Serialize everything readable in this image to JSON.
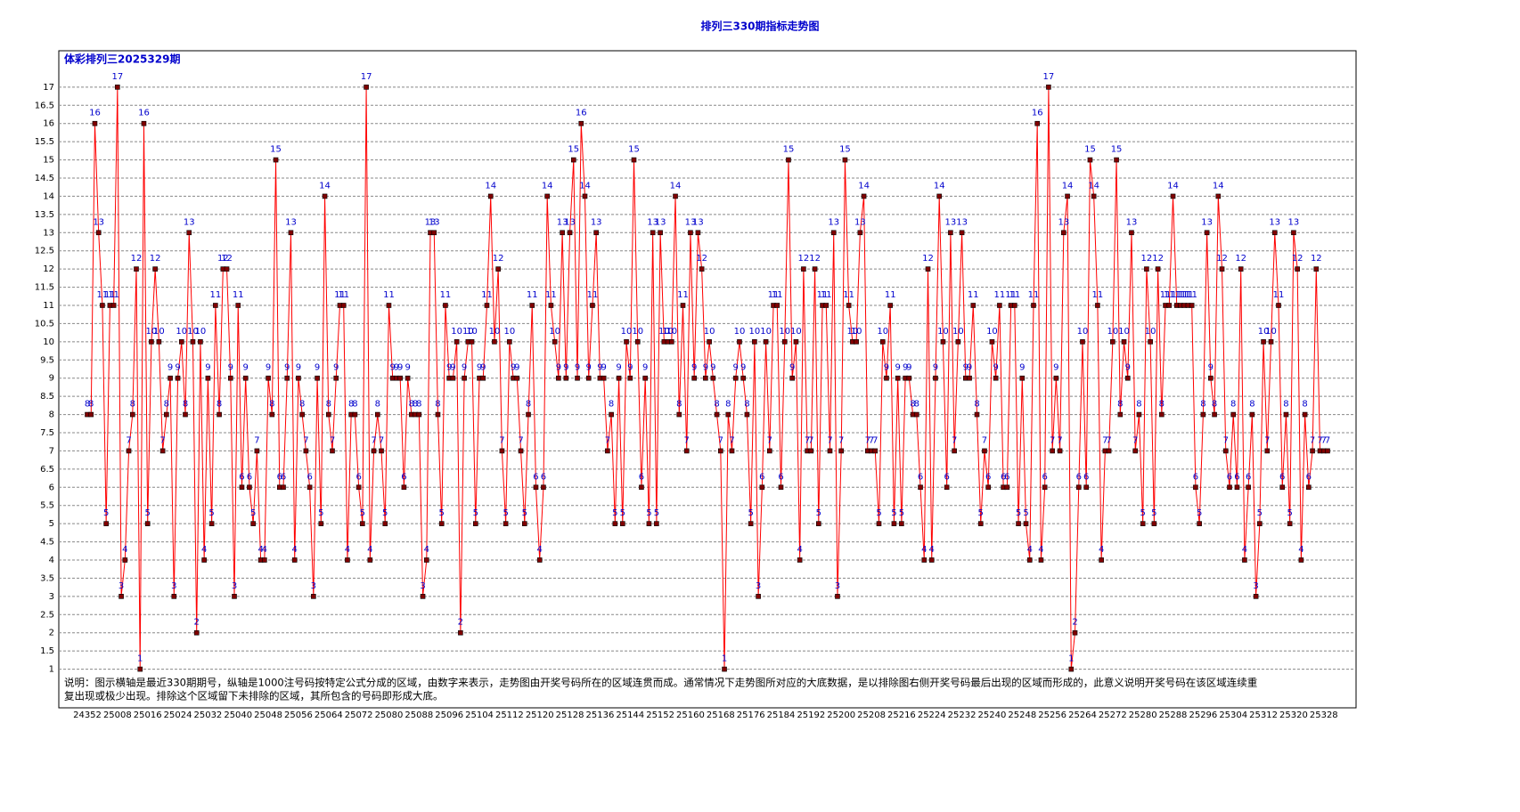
{
  "chart_data": {
    "type": "line",
    "title": "排列三330期指标走势图",
    "subtitle": "体彩排列三2025329期",
    "notes": [
      "说明：图示横轴是最近330期期号，纵轴是1000注号码按特定公式分成的区域，由数字来表示，走势图由开奖号码所在的区域连贯而成。通常情况下走势图所对应的大底数据，是以排除图右侧开奖号码最后出现的区域而形成的，此意义说明开奖号码在该区域连续重",
      "复出现或极少出现。排除这个区域留下未排除的区域，其所包含的号码即形成大底。"
    ],
    "categories": [
      "24352",
      null,
      null,
      null,
      null,
      null,
      null,
      null,
      "25008",
      null,
      null,
      null,
      null,
      null,
      null,
      null,
      "25016",
      null,
      null,
      null,
      null,
      null,
      null,
      null,
      "25024",
      null,
      null,
      null,
      null,
      null,
      null,
      null,
      "25032",
      null,
      null,
      null,
      null,
      null,
      null,
      null,
      "25040",
      null,
      null,
      null,
      null,
      null,
      null,
      null,
      "25048",
      null,
      null,
      null,
      null,
      null,
      null,
      null,
      "25056",
      null,
      null,
      null,
      null,
      null,
      null,
      null,
      "25064",
      null,
      null,
      null,
      null,
      null,
      null,
      null,
      "25072",
      null,
      null,
      null,
      null,
      null,
      null,
      null,
      "25080",
      null,
      null,
      null,
      null,
      null,
      null,
      null,
      "25088",
      null,
      null,
      null,
      null,
      null,
      null,
      null,
      "25096",
      null,
      null,
      null,
      null,
      null,
      null,
      null,
      "25104",
      null,
      null,
      null,
      null,
      null,
      null,
      null,
      "25112",
      null,
      null,
      null,
      null,
      null,
      null,
      null,
      "25120",
      null,
      null,
      null,
      null,
      null,
      null,
      null,
      "25128",
      null,
      null,
      null,
      null,
      null,
      null,
      null,
      "25136",
      null,
      null,
      null,
      null,
      null,
      null,
      null,
      "25144",
      null,
      null,
      null,
      null,
      null,
      null,
      null,
      "25152",
      null,
      null,
      null,
      null,
      null,
      null,
      null,
      "25160",
      null,
      null,
      null,
      null,
      null,
      null,
      null,
      "25168",
      null,
      null,
      null,
      null,
      null,
      null,
      null,
      "25176",
      null,
      null,
      null,
      null,
      null,
      null,
      null,
      "25184",
      null,
      null,
      null,
      null,
      null,
      null,
      null,
      "25192",
      null,
      null,
      null,
      null,
      null,
      null,
      null,
      "25200",
      null,
      null,
      null,
      null,
      null,
      null,
      null,
      "25208",
      null,
      null,
      null,
      null,
      null,
      null,
      null,
      "25216",
      null,
      null,
      null,
      null,
      null,
      null,
      null,
      "25224",
      null,
      null,
      null,
      null,
      null,
      null,
      null,
      "25232",
      null,
      null,
      null,
      null,
      null,
      null,
      null,
      "25240",
      null,
      null,
      null,
      null,
      null,
      null,
      null,
      "25248",
      null,
      null,
      null,
      null,
      null,
      null,
      null,
      "25256",
      null,
      null,
      null,
      null,
      null,
      null,
      null,
      "25264",
      null,
      null,
      null,
      null,
      null,
      null,
      null,
      "25272",
      null,
      null,
      null,
      null,
      null,
      null,
      null,
      "25280",
      null,
      null,
      null,
      null,
      null,
      null,
      null,
      "25288",
      null,
      null,
      null,
      null,
      null,
      null,
      null,
      "25296",
      null,
      null,
      null,
      null,
      null,
      null,
      null,
      "25304",
      null,
      null,
      null,
      null,
      null,
      null,
      null,
      "25312",
      null,
      null,
      null,
      null,
      null,
      null,
      null,
      "25320",
      null,
      null,
      null,
      null,
      null,
      null,
      null,
      "25328",
      null
    ],
    "values": [
      8,
      8,
      16,
      13,
      11,
      5,
      11,
      11,
      17,
      3,
      4,
      7,
      8,
      12,
      1,
      16,
      5,
      10,
      12,
      10,
      7,
      8,
      9,
      3,
      9,
      10,
      8,
      13,
      10,
      2,
      10,
      4,
      9,
      5,
      11,
      8,
      12,
      12,
      9,
      3,
      11,
      6,
      9,
      6,
      5,
      7,
      4,
      4,
      9,
      8,
      15,
      6,
      6,
      9,
      13,
      4,
      9,
      8,
      7,
      6,
      3,
      9,
      5,
      14,
      8,
      7,
      9,
      11,
      11,
      4,
      8,
      8,
      6,
      5,
      17,
      4,
      7,
      8,
      7,
      5,
      11,
      9,
      9,
      9,
      6,
      9,
      8,
      8,
      8,
      3,
      4,
      13,
      13,
      8,
      5,
      11,
      9,
      9,
      10,
      2,
      9,
      10,
      10,
      5,
      9,
      9,
      11,
      14,
      10,
      12,
      7,
      5,
      10,
      9,
      9,
      7,
      5,
      8,
      11,
      6,
      4,
      6,
      14,
      11,
      10,
      9,
      13,
      9,
      13,
      15,
      9,
      16,
      14,
      9,
      11,
      13,
      9,
      9,
      7,
      8,
      5,
      9,
      5,
      10,
      9,
      15,
      10,
      6,
      9,
      5,
      13,
      5,
      13,
      10,
      10,
      10,
      14,
      8,
      11,
      7,
      13,
      9,
      13,
      12,
      9,
      10,
      9,
      8,
      7,
      1,
      8,
      7,
      9,
      10,
      9,
      8,
      5,
      10,
      3,
      6,
      10,
      7,
      11,
      11,
      6,
      10,
      15,
      9,
      10,
      4,
      12,
      7,
      7,
      12,
      5,
      11,
      11,
      7,
      13,
      3,
      7,
      15,
      11,
      10,
      10,
      13,
      14,
      7,
      7,
      7,
      5,
      10,
      9,
      11,
      5,
      9,
      5,
      9,
      9,
      8,
      8,
      6,
      4,
      12,
      4,
      9,
      14,
      10,
      6,
      13,
      7,
      10,
      13,
      9,
      9,
      11,
      8,
      5,
      7,
      6,
      10,
      9,
      11,
      6,
      6,
      11,
      11,
      5,
      9,
      5,
      4,
      11,
      16,
      4,
      6,
      17,
      7,
      9,
      7,
      13,
      14,
      1,
      2,
      6,
      10,
      6,
      15,
      14,
      11,
      4,
      7,
      7,
      10,
      15,
      8,
      10,
      9,
      13,
      7,
      8,
      5,
      12,
      10,
      5,
      12,
      8,
      11,
      11,
      14,
      11,
      11,
      11,
      11,
      11,
      6,
      5,
      8,
      13,
      9,
      8,
      14,
      12,
      7,
      6,
      8,
      6,
      12,
      4,
      6,
      8,
      3,
      5,
      10,
      7,
      10,
      13,
      11,
      6,
      8,
      5,
      13,
      12,
      4,
      8,
      6,
      7,
      12,
      7,
      7,
      7
    ],
    "color": "#ff0000",
    "marker_color": "#800000",
    "label_color": "#0000cc",
    "ylim": [
      0.5,
      18
    ],
    "yticks": [
      1,
      1.5,
      2,
      2.5,
      3,
      3.5,
      4,
      4.5,
      5,
      5.5,
      6,
      6.5,
      7,
      7.5,
      8,
      8.5,
      9,
      9.5,
      10,
      10.5,
      11,
      11.5,
      12,
      12.5,
      13,
      13.5,
      14,
      14.5,
      15,
      15.5,
      16,
      16.5,
      17
    ],
    "grid": true
  }
}
